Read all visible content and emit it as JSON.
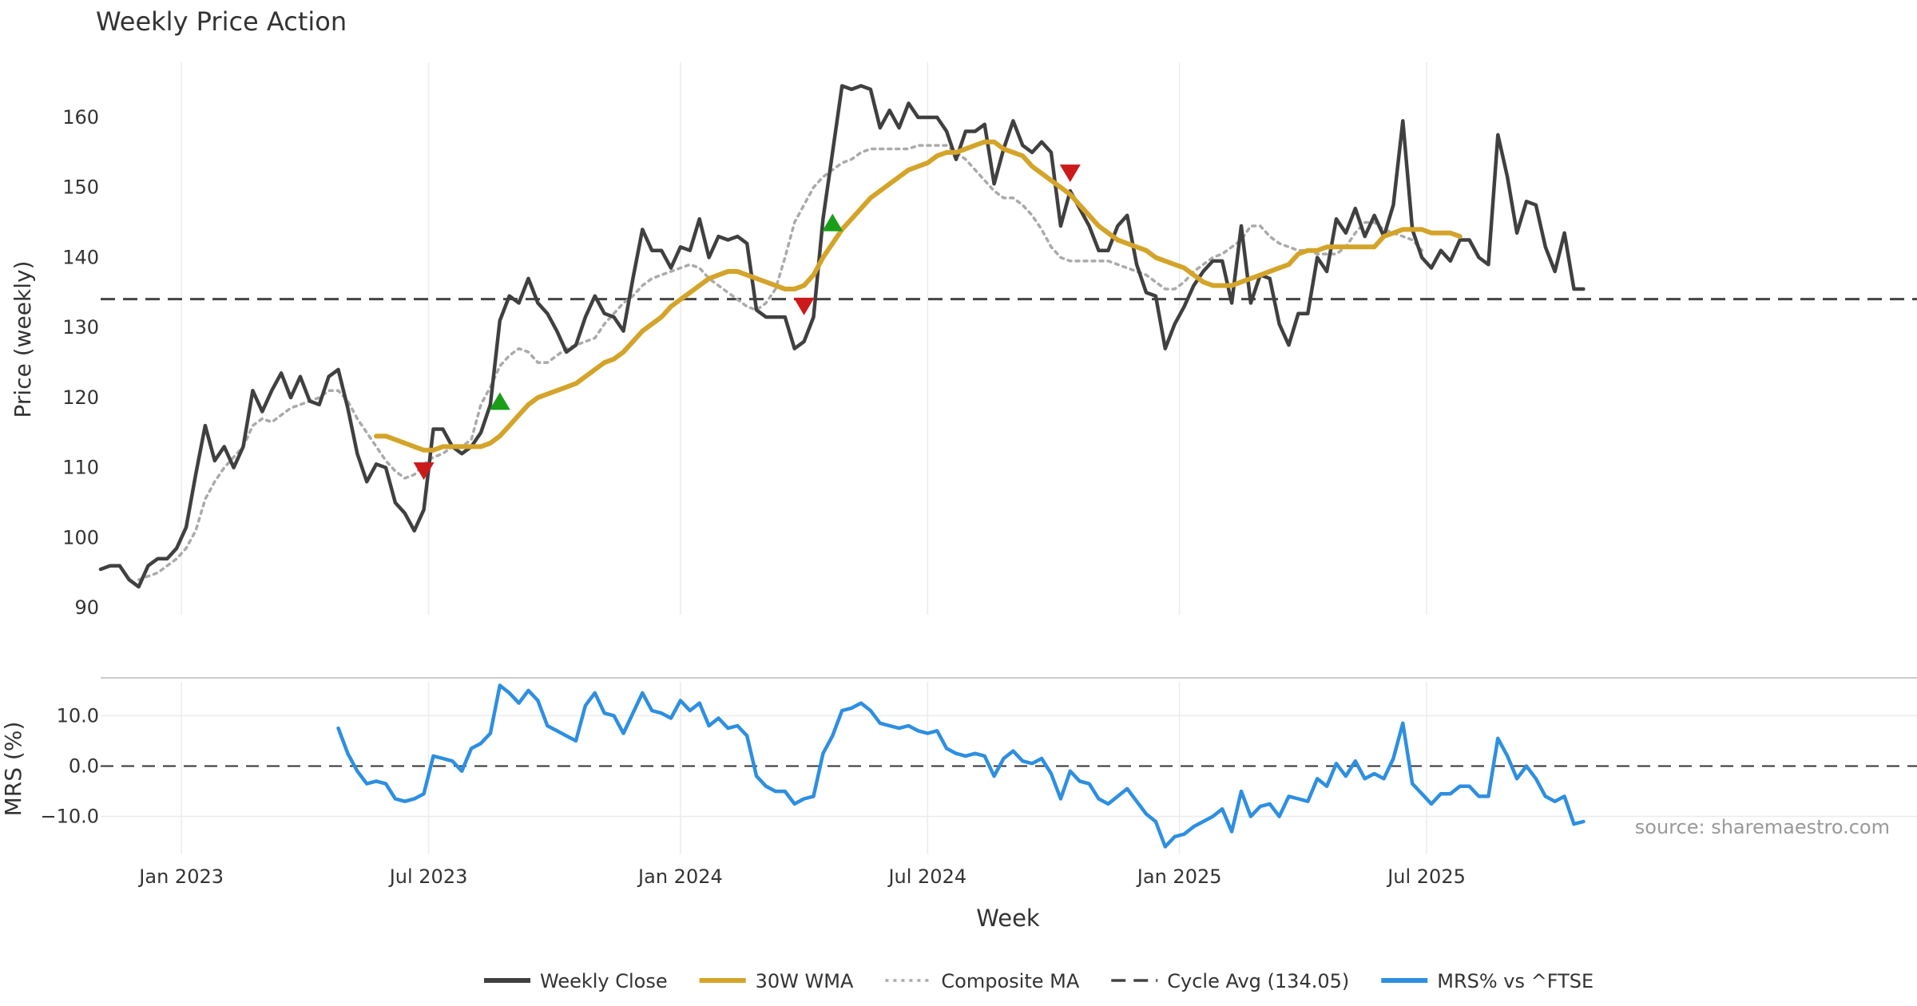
{
  "chart_data": {
    "type": "line",
    "title": "Weekly Price Action",
    "xlabel": "Week",
    "ylabel": "Price (weekly)",
    "ylabel_lower": "MRS (%)",
    "ylim": [
      89,
      169
    ],
    "ylim_lower": [
      -17.5,
      17.5
    ],
    "yticks": [
      90,
      100,
      110,
      120,
      130,
      140,
      150,
      160
    ],
    "yticks_lower": [
      10,
      0,
      -10
    ],
    "ytick_labels_lower": [
      "10.0",
      "0.0",
      "−10.0"
    ],
    "xticks": [
      {
        "label": "Jan 2023",
        "week": 8.5
      },
      {
        "label": "Jul 2023",
        "week": 34.5
      },
      {
        "label": "Jan 2024",
        "week": 61
      },
      {
        "label": "Jul 2024",
        "week": 87
      },
      {
        "label": "Jan 2025",
        "week": 113.5
      },
      {
        "label": "Jul 2025",
        "week": 139.5
      }
    ],
    "x_range": [
      0,
      155
    ],
    "cycle_avg": 134.05,
    "source_note": "source: sharemaestro.com",
    "legend": [
      {
        "label": "Weekly Close",
        "color": "#404040",
        "style": "solid"
      },
      {
        "label": "30W WMA",
        "color": "#d4a42a",
        "style": "solid"
      },
      {
        "label": "Composite MA",
        "color": "#aaaaaa",
        "style": "dotted"
      },
      {
        "label": "Cycle Avg (134.05)",
        "color": "#444444",
        "style": "dashed"
      },
      {
        "label": "MRS% vs ^FTSE",
        "color": "#2e8fe0",
        "style": "solid"
      }
    ],
    "series": [
      {
        "name": "Weekly Close",
        "color": "#404040",
        "start_week": 0,
        "values": [
          95.5,
          96,
          96,
          94,
          93,
          96,
          97,
          97,
          98.5,
          101.5,
          109,
          116,
          111,
          113,
          110,
          113,
          121,
          118,
          121,
          123.5,
          120,
          123,
          119.5,
          119,
          123,
          124,
          118.5,
          112,
          108,
          110.5,
          110,
          105,
          103.5,
          101,
          104,
          115.5,
          115.5,
          113,
          112,
          113,
          115,
          119,
          131,
          134.5,
          133.5,
          137,
          133.5,
          132,
          129.5,
          126.5,
          127.5,
          131.5,
          134.5,
          132,
          131.5,
          129.5,
          137,
          144,
          141,
          141,
          138.5,
          141.5,
          141,
          145.5,
          140,
          143,
          142.5,
          143,
          142,
          132.5,
          131.5,
          131.5,
          131.5,
          127,
          128,
          131.5,
          145.5,
          155,
          164.5,
          164,
          164.5,
          164,
          158.5,
          161,
          158.5,
          162,
          160,
          160,
          160,
          158,
          154,
          158,
          158,
          159,
          150.5,
          155.5,
          159.5,
          156,
          155,
          156.5,
          155,
          144.5,
          149.5,
          147,
          144.5,
          141,
          141,
          144.5,
          146,
          139,
          135,
          134.5,
          127,
          130.5,
          133,
          136,
          138,
          139.5,
          139.5,
          133.5,
          144.5,
          133.5,
          137.5,
          137,
          130.5,
          127.5,
          132,
          132,
          140,
          138,
          145.5,
          143.5,
          147,
          143,
          146,
          143,
          147.5,
          159.5,
          144,
          140,
          138.5,
          141,
          139.5,
          142.5,
          142.5,
          140,
          139,
          157.5,
          151.5,
          143.5,
          148,
          147.5,
          141.5,
          138,
          143.5,
          135.5,
          135.5
        ]
      },
      {
        "name": "30W WMA",
        "color": "#d4a42a",
        "start_week": 29,
        "values": [
          114.5,
          114.5,
          114,
          113.5,
          113,
          112.5,
          112.5,
          113,
          113,
          113,
          113,
          113,
          113.5,
          114.5,
          116,
          117.5,
          119,
          120,
          120.5,
          121,
          121.5,
          122,
          123,
          124,
          125,
          125.5,
          126.5,
          128,
          129.5,
          130.5,
          131.5,
          133,
          134,
          135,
          136,
          137,
          137.5,
          138,
          138,
          137.5,
          137,
          136.5,
          136,
          135.5,
          135.5,
          136,
          137.5,
          140,
          142,
          144,
          145.5,
          147,
          148.5,
          149.5,
          150.5,
          151.5,
          152.5,
          153,
          153.5,
          154.5,
          155,
          155,
          155.5,
          156,
          156.5,
          156.5,
          155.5,
          155,
          154.5,
          153,
          152,
          151,
          150,
          149,
          147.5,
          146,
          144.5,
          143.5,
          142.5,
          142,
          141.5,
          141,
          140,
          139.5,
          139,
          138.5,
          137.5,
          136.5,
          136,
          136,
          136,
          136.5,
          137,
          137.5,
          138,
          138.5,
          139,
          140.5,
          141,
          141,
          141.5,
          141.5,
          141.5,
          141.5,
          141.5,
          141.5,
          143,
          143.5,
          144,
          144,
          144,
          143.5,
          143.5,
          143.5,
          143
        ]
      },
      {
        "name": "Composite MA",
        "color": "#aaaaaa",
        "start_week": 4,
        "values": [
          94,
          94.5,
          95,
          96,
          97,
          98.5,
          101,
          105.5,
          108,
          110,
          111.5,
          113,
          116,
          117,
          116.5,
          117.5,
          118.5,
          119,
          119.5,
          120,
          121,
          121,
          119.5,
          117,
          115,
          113,
          111,
          109.5,
          108.5,
          109,
          110.5,
          111.5,
          112,
          113,
          113,
          114,
          119,
          121.5,
          124.5,
          126,
          127,
          126.5,
          125,
          125,
          126,
          127,
          127.5,
          128,
          128.5,
          130.5,
          132,
          133.5,
          134.5,
          136,
          137,
          137.5,
          138,
          138.5,
          139,
          138.5,
          137,
          136,
          135,
          134,
          133,
          132.5,
          133.5,
          135.5,
          140,
          145,
          147.5,
          150,
          151.5,
          152.5,
          153.5,
          154,
          155,
          155.5,
          155.5,
          155.5,
          155.5,
          155.5,
          156,
          156,
          156,
          156,
          155,
          154,
          152.5,
          151,
          149.5,
          148.5,
          148.5,
          147.5,
          146,
          144,
          141.5,
          140,
          139.5,
          139.5,
          139.5,
          139.5,
          139.5,
          139,
          138.5,
          138,
          137.5,
          136.5,
          135.5,
          135.5,
          136.5,
          138,
          139,
          140,
          140.5,
          141.5,
          142.5,
          144.5,
          144.5,
          143,
          142,
          141.5,
          141,
          141,
          140.5,
          140.5,
          140.5,
          141.5,
          143.5,
          145,
          145,
          144,
          143.5,
          143,
          142.5,
          141
        ]
      }
    ],
    "signals": [
      {
        "type": "buy",
        "week": 42,
        "value": 119.5
      },
      {
        "type": "buy",
        "week": 77,
        "value": 145
      },
      {
        "type": "sell",
        "week": 34,
        "value": 109.5
      },
      {
        "type": "sell",
        "week": 74,
        "value": 133
      },
      {
        "type": "sell",
        "week": 102,
        "value": 152
      }
    ],
    "mrs": {
      "name": "MRS% vs ^FTSE",
      "color": "#2e8fe0",
      "start_week": 25,
      "values": [
        7.5,
        2.5,
        -1,
        -3.5,
        -3,
        -3.5,
        -6.5,
        -7,
        -6.5,
        -5.5,
        2,
        1.5,
        1,
        -1,
        3.5,
        4.5,
        6.5,
        16,
        14.5,
        12.5,
        15,
        13,
        8,
        7,
        6,
        5,
        12,
        14.5,
        10.5,
        10,
        6.5,
        10.5,
        14.5,
        11,
        10.5,
        9.5,
        13,
        11,
        12.5,
        8,
        9.5,
        7.5,
        8,
        6,
        -2,
        -4,
        -5,
        -5,
        -7.5,
        -6.5,
        -6,
        2.5,
        6,
        11,
        11.5,
        12.5,
        11,
        8.5,
        8,
        7.5,
        8,
        7,
        6.5,
        7,
        3.5,
        2.5,
        2,
        2.5,
        2,
        -2,
        1.5,
        3,
        1,
        0.5,
        1.5,
        -1.5,
        -6.5,
        -1,
        -3,
        -3.5,
        -6.5,
        -7.5,
        -6,
        -4.5,
        -7,
        -9.5,
        -11,
        -16,
        -14,
        -13.5,
        -12,
        -11,
        -10,
        -8.5,
        -13,
        -5,
        -10,
        -8,
        -7.5,
        -10,
        -6,
        -6.5,
        -7,
        -2.5,
        -4,
        0.5,
        -2,
        1,
        -2.5,
        -1.5,
        -2.5,
        1.5,
        8.5,
        -3.5,
        -5.5,
        -7.5,
        -5.5,
        -5.5,
        -4,
        -4,
        -6,
        -6,
        5.5,
        2,
        -2.5,
        0,
        -2.5,
        -6,
        -7,
        -6,
        -11.5,
        -11
      ]
    }
  }
}
